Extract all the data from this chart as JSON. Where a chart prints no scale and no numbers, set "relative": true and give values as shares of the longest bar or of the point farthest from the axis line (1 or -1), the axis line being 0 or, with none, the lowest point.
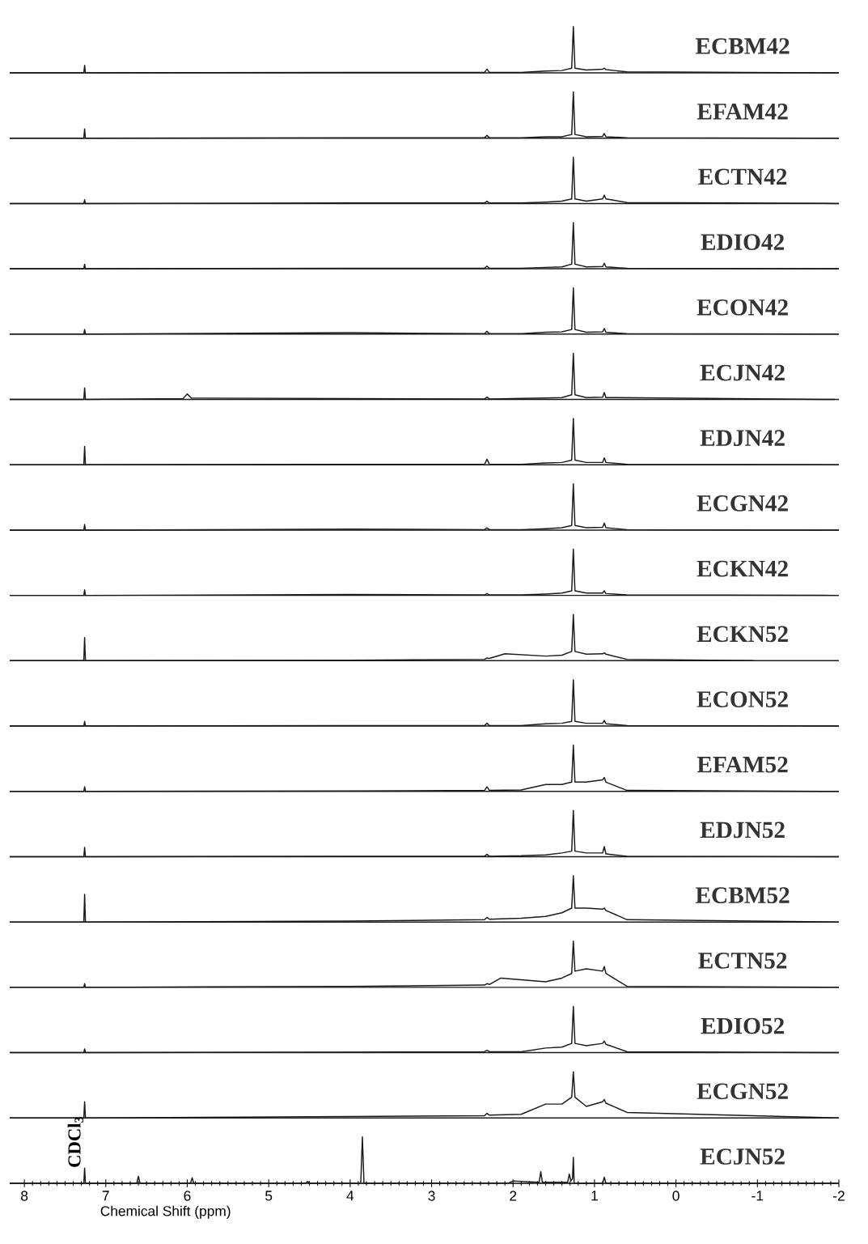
{
  "chart_data": [
    {
      "type": "line",
      "title": "ECBM42",
      "relative": true,
      "color": "#1a1a1a",
      "xlim": [
        8.18,
        -2
      ],
      "tick_labels": false,
      "x": [
        8.18,
        7.27,
        7.26,
        7.25,
        4.0,
        2.35,
        2.32,
        2.29,
        1.9,
        1.6,
        1.4,
        1.28,
        1.26,
        1.24,
        1.1,
        0.9,
        0.88,
        0.86,
        0.6,
        -2.0
      ],
      "values": [
        0,
        0,
        0.16,
        0,
        0.01,
        0.01,
        0.08,
        0.01,
        0.01,
        0.04,
        0.05,
        0.1,
        1,
        0.1,
        0.06,
        0.08,
        0.1,
        0.07,
        0.02,
        0
      ]
    },
    {
      "type": "line",
      "title": "EFAM42",
      "relative": true,
      "color": "#1a1a1a",
      "xlim": [
        8.18,
        -2
      ],
      "tick_labels": false,
      "x": [
        8.18,
        7.27,
        7.26,
        7.25,
        4.0,
        2.35,
        2.32,
        2.29,
        1.9,
        1.6,
        1.4,
        1.28,
        1.26,
        1.24,
        1.1,
        0.9,
        0.88,
        0.86,
        0.6,
        -2.0
      ],
      "values": [
        0,
        0,
        0.2,
        0,
        0.01,
        0.01,
        0.06,
        0.01,
        0.01,
        0.03,
        0.03,
        0.08,
        1,
        0.08,
        0.03,
        0.04,
        0.1,
        0.03,
        0.01,
        0
      ]
    },
    {
      "type": "line",
      "title": "ECTN42",
      "relative": true,
      "color": "#1a1a1a",
      "xlim": [
        8.18,
        -2
      ],
      "tick_labels": false,
      "x": [
        8.18,
        7.27,
        7.26,
        7.25,
        4.0,
        2.35,
        2.32,
        2.29,
        1.9,
        1.6,
        1.4,
        1.28,
        1.26,
        1.24,
        1.1,
        0.9,
        0.88,
        0.86,
        0.6,
        -2.0
      ],
      "values": [
        0,
        0,
        0.08,
        0,
        0.01,
        0.01,
        0.05,
        0.01,
        0.01,
        0.03,
        0.05,
        0.1,
        1,
        0.1,
        0.05,
        0.1,
        0.18,
        0.1,
        0.02,
        0
      ]
    },
    {
      "type": "line",
      "title": "EDIO42",
      "relative": true,
      "color": "#1a1a1a",
      "xlim": [
        8.18,
        -2
      ],
      "tick_labels": false,
      "x": [
        8.18,
        7.27,
        7.26,
        7.25,
        4.0,
        2.35,
        2.32,
        2.29,
        1.9,
        1.6,
        1.4,
        1.28,
        1.26,
        1.24,
        1.1,
        0.9,
        0.88,
        0.86,
        0.6,
        -2.0
      ],
      "values": [
        0,
        0,
        0.1,
        0,
        0.01,
        0.01,
        0.06,
        0.01,
        0.01,
        0.03,
        0.04,
        0.1,
        1,
        0.1,
        0.04,
        0.05,
        0.12,
        0.04,
        0.01,
        0
      ]
    },
    {
      "type": "line",
      "title": "ECON42",
      "relative": true,
      "color": "#1a1a1a",
      "xlim": [
        8.18,
        -2
      ],
      "tick_labels": false,
      "x": [
        8.18,
        7.27,
        7.26,
        7.25,
        4.0,
        2.35,
        2.32,
        2.29,
        1.9,
        1.6,
        1.4,
        1.28,
        1.26,
        1.24,
        1.1,
        0.9,
        0.88,
        0.86,
        0.6,
        -2.0
      ],
      "values": [
        0,
        0,
        0.1,
        0,
        0.03,
        0.01,
        0.06,
        0.01,
        0.01,
        0.04,
        0.05,
        0.1,
        1,
        0.1,
        0.04,
        0.05,
        0.12,
        0.04,
        0.01,
        0
      ]
    },
    {
      "type": "line",
      "title": "ECJN42",
      "relative": true,
      "color": "#1a1a1a",
      "xlim": [
        8.18,
        -2
      ],
      "tick_labels": false,
      "x": [
        8.18,
        7.27,
        7.26,
        7.25,
        6.05,
        6.0,
        5.95,
        2.35,
        2.32,
        2.29,
        1.6,
        1.4,
        1.28,
        1.26,
        1.24,
        1.1,
        0.9,
        0.88,
        0.86,
        -1.95
      ],
      "values": [
        0,
        0,
        0.25,
        0,
        0.02,
        0.12,
        0.03,
        0.01,
        0.05,
        0.01,
        0.03,
        0.04,
        0.1,
        1,
        0.1,
        0.04,
        0.05,
        0.15,
        0.04,
        0
      ]
    },
    {
      "type": "line",
      "title": "EDJN42",
      "relative": true,
      "color": "#1a1a1a",
      "xlim": [
        8.18,
        -2
      ],
      "tick_labels": false,
      "x": [
        8.18,
        7.27,
        7.26,
        7.25,
        4.0,
        2.35,
        2.32,
        2.29,
        1.9,
        1.6,
        1.4,
        1.28,
        1.26,
        1.24,
        1.1,
        0.9,
        0.88,
        0.86,
        0.6,
        -2.0
      ],
      "values": [
        0,
        0,
        0.4,
        0,
        0.01,
        0.01,
        0.12,
        0.01,
        0.01,
        0.04,
        0.05,
        0.1,
        1,
        0.1,
        0.05,
        0.05,
        0.15,
        0.05,
        0.01,
        0
      ]
    },
    {
      "type": "line",
      "title": "ECGN42",
      "relative": true,
      "color": "#1a1a1a",
      "xlim": [
        8.18,
        -2
      ],
      "tick_labels": false,
      "x": [
        8.18,
        7.27,
        7.26,
        7.25,
        4.0,
        2.35,
        2.32,
        2.29,
        1.9,
        1.6,
        1.4,
        1.28,
        1.26,
        1.24,
        1.1,
        0.9,
        0.88,
        0.86,
        0.6,
        -2.0
      ],
      "values": [
        0,
        0,
        0.12,
        0,
        0.02,
        0.01,
        0.05,
        0.01,
        0.01,
        0.03,
        0.05,
        0.1,
        1,
        0.1,
        0.05,
        0.06,
        0.15,
        0.05,
        0.01,
        0
      ]
    },
    {
      "type": "line",
      "title": "ECKN42",
      "relative": true,
      "color": "#1a1a1a",
      "xlim": [
        8.18,
        -2
      ],
      "tick_labels": false,
      "x": [
        8.18,
        7.27,
        7.26,
        7.25,
        4.0,
        2.35,
        2.32,
        2.29,
        1.9,
        1.6,
        1.4,
        1.28,
        1.26,
        1.24,
        1.1,
        0.9,
        0.88,
        0.86,
        0.6,
        -2.0
      ],
      "values": [
        0,
        0,
        0.12,
        0,
        0.02,
        0.01,
        0.04,
        0.01,
        0.01,
        0.03,
        0.05,
        0.1,
        1,
        0.1,
        0.05,
        0.05,
        0.1,
        0.04,
        0.01,
        0
      ]
    },
    {
      "type": "line",
      "title": "ECKN52",
      "relative": true,
      "color": "#1a1a1a",
      "xlim": [
        8.18,
        -2
      ],
      "tick_labels": false,
      "x": [
        8.18,
        7.27,
        7.26,
        7.25,
        4.0,
        2.35,
        2.32,
        2.29,
        2.1,
        1.6,
        1.4,
        1.28,
        1.26,
        1.24,
        1.1,
        0.9,
        0.88,
        0.86,
        0.6,
        -0.95
      ],
      "values": [
        0,
        0,
        0.5,
        0,
        0.01,
        0.03,
        0.06,
        0.05,
        0.15,
        0.1,
        0.12,
        0.2,
        1,
        0.2,
        0.14,
        0.15,
        0.17,
        0.14,
        0.03,
        0
      ]
    },
    {
      "type": "line",
      "title": "ECON52",
      "relative": true,
      "color": "#1a1a1a",
      "xlim": [
        8.18,
        -2
      ],
      "tick_labels": false,
      "x": [
        8.18,
        7.27,
        7.26,
        7.25,
        4.0,
        2.35,
        2.32,
        2.29,
        1.9,
        1.6,
        1.4,
        1.28,
        1.26,
        1.24,
        1.1,
        0.9,
        0.88,
        0.86,
        0.6,
        -2.0
      ],
      "values": [
        0,
        0,
        0.1,
        0,
        0.01,
        0.01,
        0.06,
        0.01,
        0.01,
        0.05,
        0.06,
        0.1,
        1,
        0.1,
        0.06,
        0.06,
        0.12,
        0.05,
        0.01,
        0
      ]
    },
    {
      "type": "line",
      "title": "EFAM52",
      "relative": true,
      "color": "#1a1a1a",
      "xlim": [
        8.18,
        -2
      ],
      "tick_labels": false,
      "x": [
        8.18,
        7.27,
        7.26,
        7.25,
        4.0,
        2.35,
        2.32,
        2.29,
        1.9,
        1.6,
        1.4,
        1.28,
        1.26,
        1.24,
        1.1,
        0.9,
        0.88,
        0.86,
        0.6,
        -2.0
      ],
      "values": [
        0,
        0,
        0.1,
        0,
        0.01,
        0.02,
        0.1,
        0.02,
        0.03,
        0.15,
        0.15,
        0.2,
        1,
        0.2,
        0.2,
        0.25,
        0.3,
        0.2,
        0.02,
        0
      ]
    },
    {
      "type": "line",
      "title": "EDJN52",
      "relative": true,
      "color": "#1a1a1a",
      "xlim": [
        8.18,
        -2
      ],
      "tick_labels": false,
      "x": [
        8.18,
        7.27,
        7.26,
        7.25,
        4.0,
        2.35,
        2.32,
        2.29,
        1.9,
        1.6,
        1.4,
        1.28,
        1.26,
        1.24,
        1.1,
        0.9,
        0.88,
        0.86,
        0.6,
        -2.0
      ],
      "values": [
        0,
        0,
        0.2,
        0,
        0.01,
        0.01,
        0.05,
        0.01,
        0.02,
        0.04,
        0.08,
        0.12,
        1,
        0.12,
        0.08,
        0.08,
        0.22,
        0.06,
        0.01,
        0
      ]
    },
    {
      "type": "line",
      "title": "ECBM52",
      "relative": true,
      "color": "#1a1a1a",
      "xlim": [
        8.18,
        -2
      ],
      "tick_labels": false,
      "x": [
        8.18,
        7.27,
        7.26,
        7.25,
        4.0,
        2.35,
        2.32,
        2.29,
        1.9,
        1.6,
        1.4,
        1.28,
        1.26,
        1.24,
        1.1,
        0.9,
        0.88,
        0.86,
        0.6,
        -2.0
      ],
      "values": [
        0,
        0,
        0.6,
        0,
        0.02,
        0.05,
        0.1,
        0.06,
        0.08,
        0.12,
        0.2,
        0.3,
        1,
        0.3,
        0.3,
        0.28,
        0.3,
        0.25,
        0.05,
        0
      ]
    },
    {
      "type": "line",
      "title": "ECTN52",
      "relative": true,
      "color": "#1a1a1a",
      "xlim": [
        8.18,
        -2
      ],
      "tick_labels": false,
      "x": [
        8.18,
        7.27,
        7.26,
        7.25,
        4.0,
        2.35,
        2.32,
        2.29,
        2.15,
        1.6,
        1.4,
        1.28,
        1.26,
        1.24,
        1.1,
        0.9,
        0.88,
        0.86,
        0.6,
        -2.0
      ],
      "values": [
        0,
        0,
        0.08,
        0,
        0.02,
        0.05,
        0.08,
        0.06,
        0.2,
        0.12,
        0.2,
        0.3,
        1,
        0.35,
        0.4,
        0.35,
        0.45,
        0.3,
        0.02,
        0
      ]
    },
    {
      "type": "line",
      "title": "EDIO52",
      "relative": true,
      "color": "#1a1a1a",
      "xlim": [
        8.18,
        -2
      ],
      "tick_labels": false,
      "x": [
        8.18,
        7.27,
        7.26,
        7.25,
        4.0,
        2.35,
        2.32,
        2.29,
        1.9,
        1.6,
        1.4,
        1.28,
        1.26,
        1.24,
        1.1,
        0.9,
        0.88,
        0.86,
        0.6,
        -2.0
      ],
      "values": [
        0,
        0,
        0.08,
        0,
        0.01,
        0.02,
        0.05,
        0.02,
        0.02,
        0.1,
        0.12,
        0.2,
        1,
        0.2,
        0.15,
        0.2,
        0.25,
        0.18,
        0.02,
        0
      ]
    },
    {
      "type": "line",
      "title": "ECGN52",
      "relative": true,
      "color": "#1a1a1a",
      "xlim": [
        8.18,
        -2
      ],
      "tick_labels": false,
      "x": [
        8.18,
        7.27,
        7.26,
        7.25,
        4.0,
        2.35,
        2.32,
        2.29,
        1.9,
        1.6,
        1.4,
        1.28,
        1.26,
        1.24,
        1.1,
        0.9,
        0.88,
        0.86,
        0.6,
        -2.0
      ],
      "values": [
        0,
        0,
        0.35,
        0,
        0.03,
        0.05,
        0.1,
        0.06,
        0.08,
        0.3,
        0.3,
        0.45,
        1,
        0.45,
        0.25,
        0.35,
        0.4,
        0.32,
        0.12,
        0
      ]
    },
    {
      "type": "line",
      "title": "ECJN52",
      "relative": true,
      "color": "#1a1a1a",
      "xlim": [
        8.18,
        -2
      ],
      "tick_labels": "x",
      "xticks": [
        8,
        7,
        6,
        5,
        4,
        3,
        2,
        1,
        0,
        -1,
        -2
      ],
      "xlabel": "Chemical Shift (ppm)",
      "annotations": [
        {
          "text": "CDCl$_{3}$",
          "x": 7.26,
          "y": 0.33
        }
      ],
      "x": [
        8.18,
        7.27,
        7.26,
        7.25,
        6.62,
        6.6,
        6.58,
        5.96,
        5.94,
        5.92,
        4.55,
        4.52,
        4.5,
        3.87,
        3.85,
        3.83,
        2.05,
        2.0,
        1.68,
        1.66,
        1.64,
        1.33,
        1.31,
        1.29,
        1.27,
        1.26,
        1.25,
        0.9,
        0.88,
        0.86,
        0.7,
        -2.0
      ],
      "values": [
        0,
        0,
        0.33,
        0,
        0,
        0.15,
        0,
        0,
        0.12,
        0,
        0,
        0.04,
        0,
        0,
        1,
        0,
        0.01,
        0.05,
        0.02,
        0.25,
        0.02,
        0.02,
        0.2,
        0.05,
        0.1,
        0.56,
        0,
        0,
        0.13,
        0,
        0,
        0
      ]
    }
  ]
}
